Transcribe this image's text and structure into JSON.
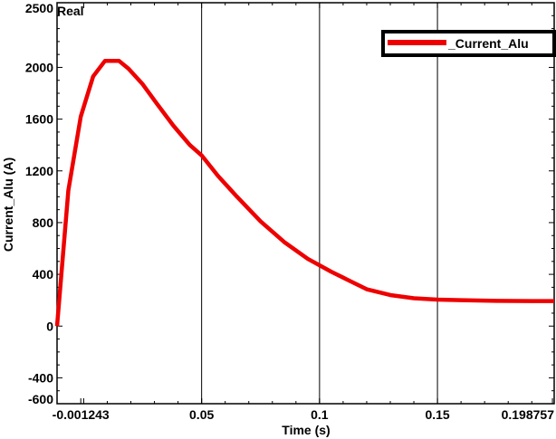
{
  "chart_data": {
    "type": "line",
    "corner_label": "Real",
    "xlabel": "Time (s)",
    "ylabel": "Current_Alu (A)",
    "xlim": [
      -0.0113,
      0.1995
    ],
    "ylim": [
      -600,
      2500
    ],
    "x_ticks": [
      -0.001243,
      0.05,
      0.1,
      0.15,
      0.198757
    ],
    "x_tick_labels": [
      "-0.001243",
      "0.05",
      "0.1",
      "0.15",
      "0.198757"
    ],
    "y_ticks": [
      -600,
      -400,
      0,
      400,
      800,
      1200,
      1600,
      2000,
      2500
    ],
    "y_tick_labels": [
      "-600",
      "-400",
      "0",
      "400",
      "800",
      "1200",
      "1600",
      "2000",
      "2500"
    ],
    "x_gridlines": [
      0.05,
      0.1,
      0.15
    ],
    "y_gridlines": [],
    "legend_position": "top-right",
    "series": [
      {
        "name": "_Current_Alu",
        "color": "#ee0000",
        "x": [
          -0.0113,
          -0.0065,
          -0.001243,
          0.004,
          0.009,
          0.015,
          0.019,
          0.025,
          0.031,
          0.038,
          0.045,
          0.05,
          0.057,
          0.065,
          0.075,
          0.085,
          0.095,
          0.105,
          0.115,
          0.12,
          0.13,
          0.14,
          0.15,
          0.16,
          0.175,
          0.19,
          0.1995
        ],
        "y": [
          0,
          1050,
          1620,
          1930,
          2050,
          2050,
          1990,
          1870,
          1720,
          1550,
          1400,
          1320,
          1160,
          1000,
          810,
          650,
          520,
          420,
          330,
          285,
          240,
          215,
          205,
          200,
          195,
          193,
          193
        ]
      }
    ]
  }
}
